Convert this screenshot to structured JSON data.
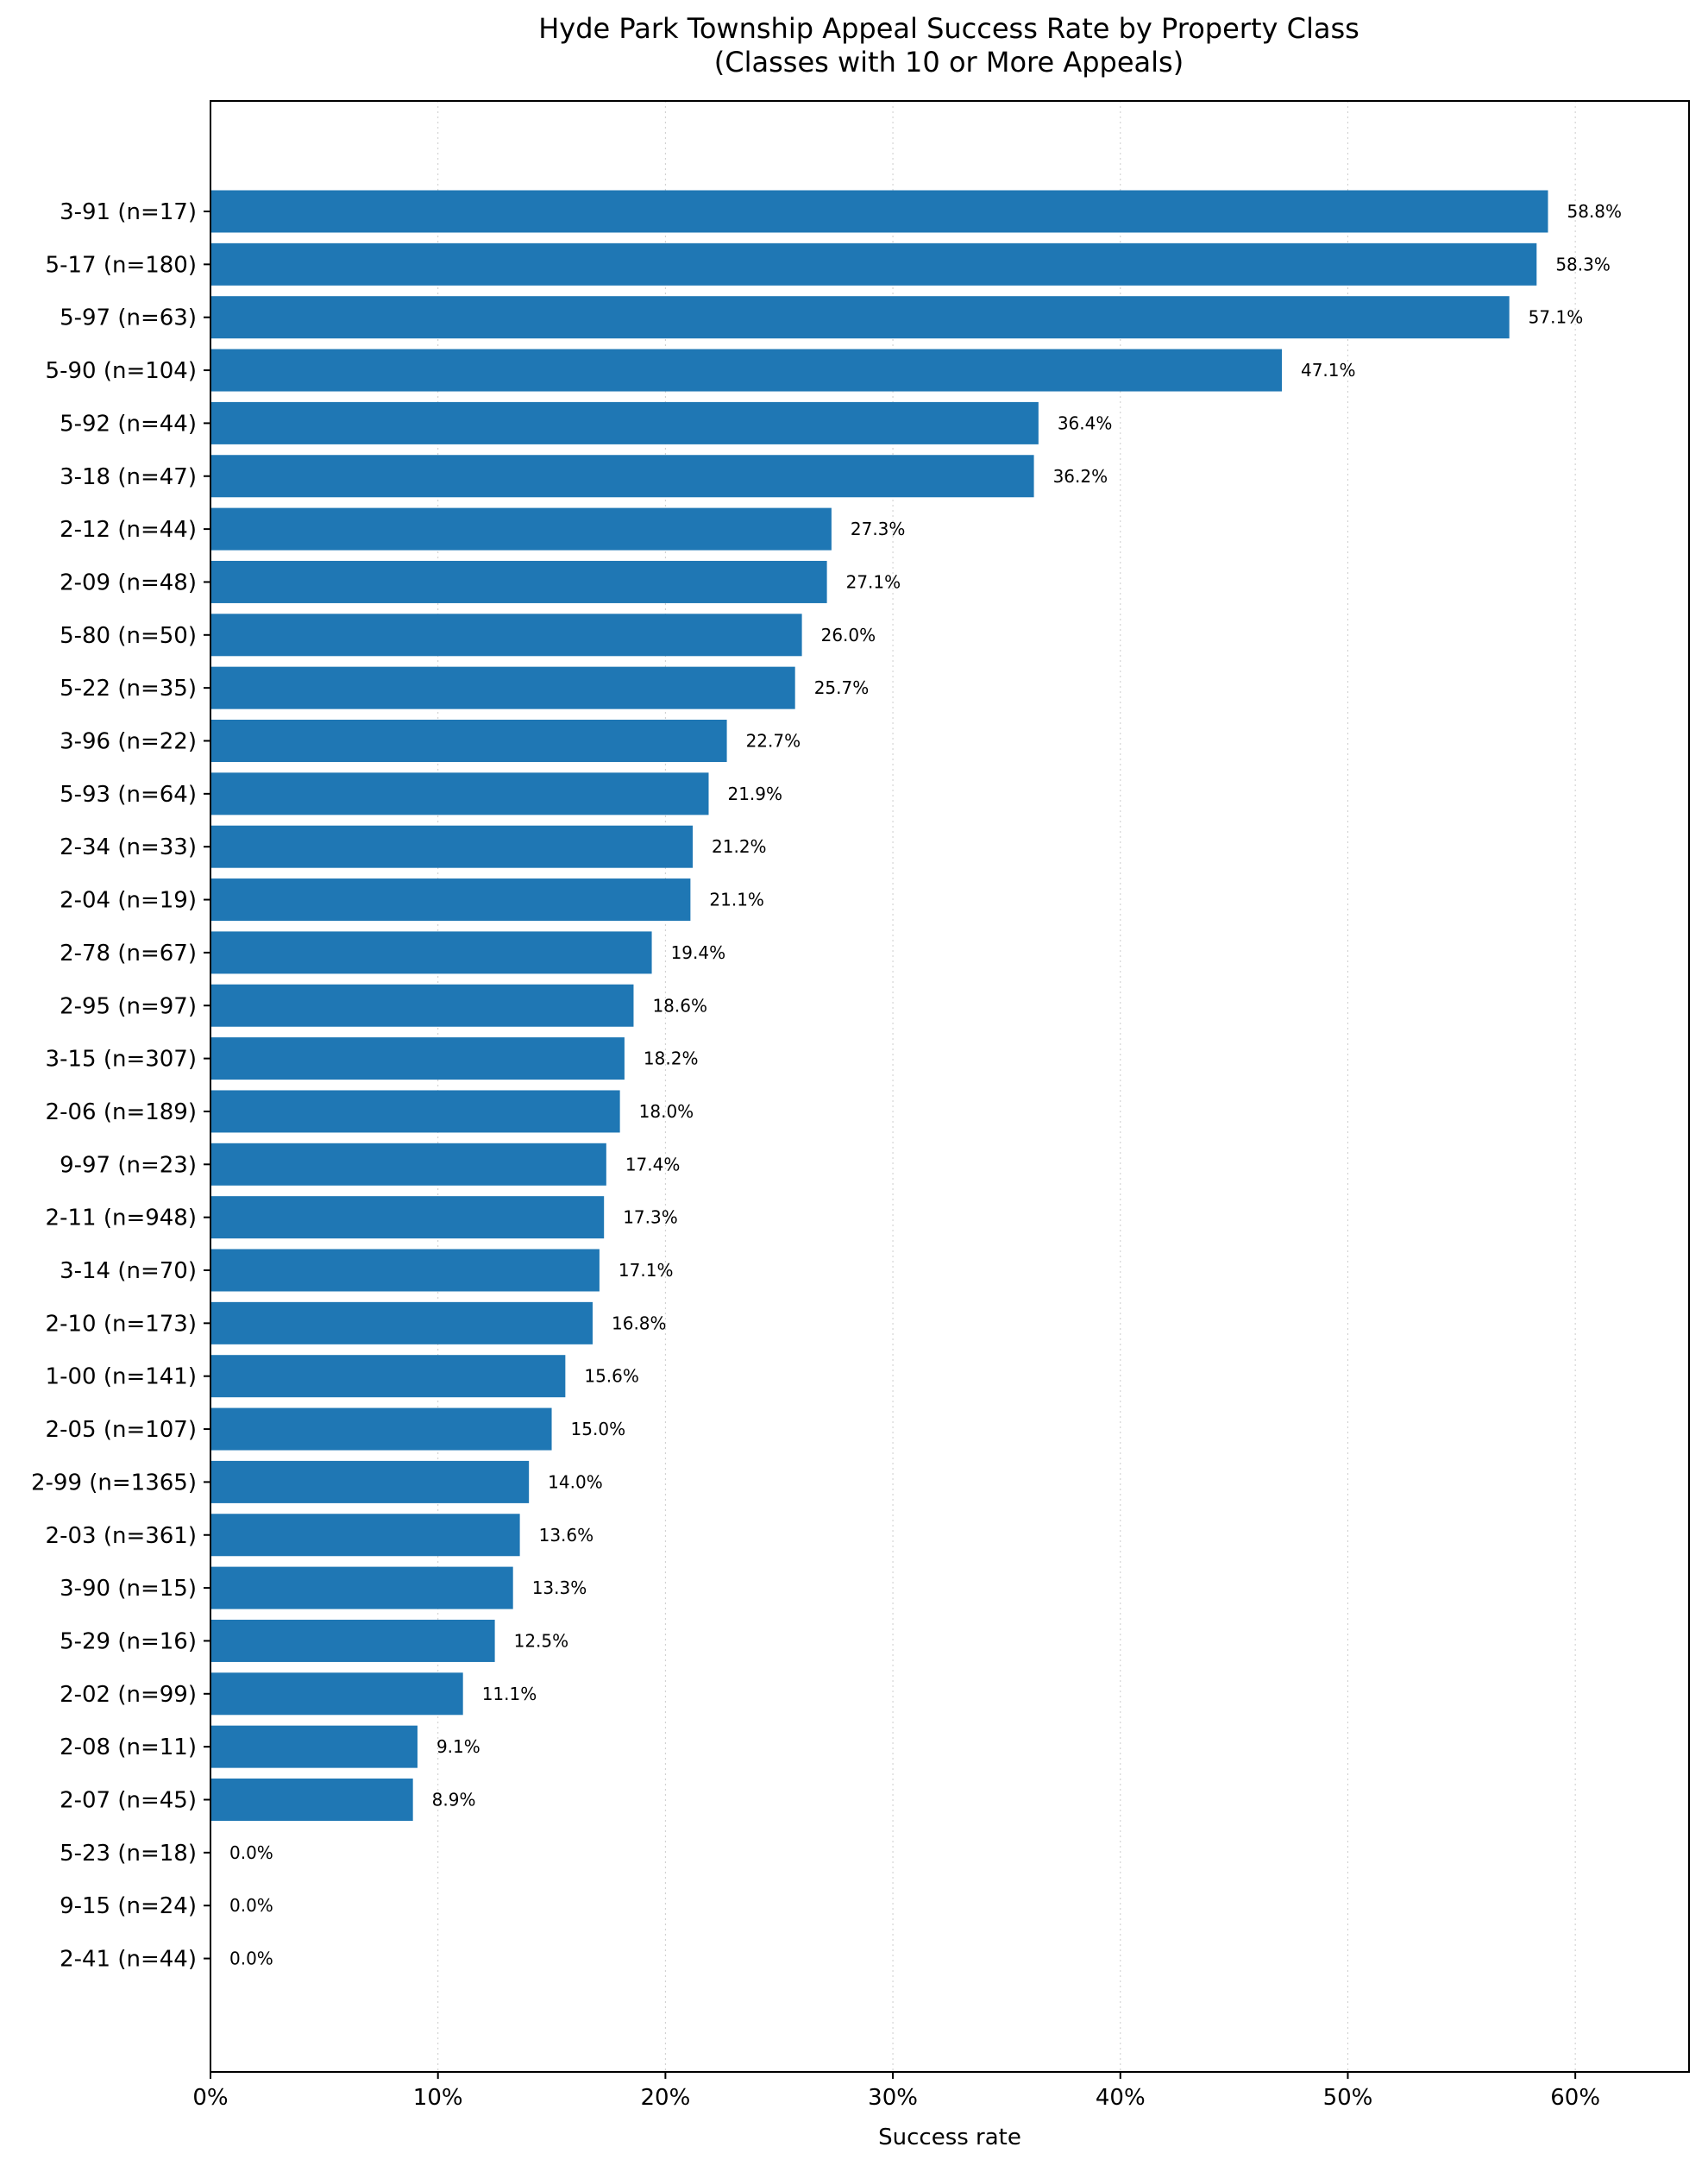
{
  "chart_data": {
    "type": "bar",
    "orientation": "horizontal",
    "title": "Hyde Park Township Appeal Success Rate by Property Class",
    "subtitle": "(Classes with 10 or More Appeals)",
    "xlabel": "Success rate",
    "ylabel": "",
    "xlim": [
      0,
      65
    ],
    "x_ticks": [
      0,
      10,
      20,
      30,
      40,
      50,
      60
    ],
    "x_tick_labels": [
      "0%",
      "10%",
      "20%",
      "30%",
      "40%",
      "50%",
      "60%"
    ],
    "grid": "vertical dotted",
    "bar_color": "#1f77b4",
    "categories": [
      "3-91 (n=17)",
      "5-17 (n=180)",
      "5-97 (n=63)",
      "5-90 (n=104)",
      "5-92 (n=44)",
      "3-18 (n=47)",
      "2-12 (n=44)",
      "2-09 (n=48)",
      "5-80 (n=50)",
      "5-22 (n=35)",
      "3-96 (n=22)",
      "5-93 (n=64)",
      "2-34 (n=33)",
      "2-04 (n=19)",
      "2-78 (n=67)",
      "2-95 (n=97)",
      "3-15 (n=307)",
      "2-06 (n=189)",
      "9-97 (n=23)",
      "2-11 (n=948)",
      "3-14 (n=70)",
      "2-10 (n=173)",
      "1-00 (n=141)",
      "2-05 (n=107)",
      "2-99 (n=1365)",
      "2-03 (n=361)",
      "3-90 (n=15)",
      "5-29 (n=16)",
      "2-02 (n=99)",
      "2-08 (n=11)",
      "2-07 (n=45)",
      "5-23 (n=18)",
      "9-15 (n=24)",
      "2-41 (n=44)"
    ],
    "values": [
      58.8,
      58.3,
      57.1,
      47.1,
      36.4,
      36.2,
      27.3,
      27.1,
      26.0,
      25.7,
      22.7,
      21.9,
      21.2,
      21.1,
      19.4,
      18.6,
      18.2,
      18.0,
      17.4,
      17.3,
      17.1,
      16.8,
      15.6,
      15.0,
      14.0,
      13.6,
      13.3,
      12.5,
      11.1,
      9.1,
      8.9,
      0.0,
      0.0,
      0.0
    ],
    "value_labels": [
      "58.8%",
      "58.3%",
      "57.1%",
      "47.1%",
      "36.4%",
      "36.2%",
      "27.3%",
      "27.1%",
      "26.0%",
      "25.7%",
      "22.7%",
      "21.9%",
      "21.2%",
      "21.1%",
      "19.4%",
      "18.6%",
      "18.2%",
      "18.0%",
      "17.4%",
      "17.3%",
      "17.1%",
      "16.8%",
      "15.6%",
      "15.0%",
      "14.0%",
      "13.6%",
      "13.3%",
      "12.5%",
      "11.1%",
      "9.1%",
      "8.9%",
      "0.0%",
      "0.0%",
      "0.0%"
    ]
  }
}
